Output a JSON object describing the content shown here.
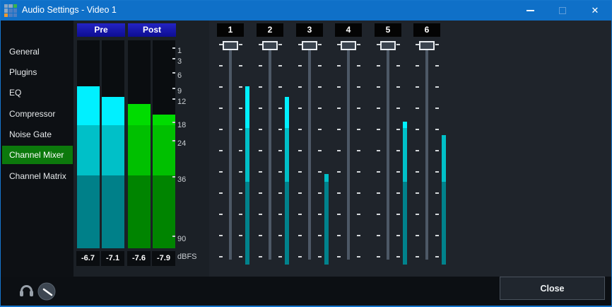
{
  "window": {
    "title": "Audio Settings - Video 1",
    "controls": {
      "minimize": "–",
      "close": "✕"
    }
  },
  "sidebar": {
    "items": [
      {
        "label": "General",
        "selected": false
      },
      {
        "label": "Plugins",
        "selected": false
      },
      {
        "label": "EQ",
        "selected": false
      },
      {
        "label": "Compressor",
        "selected": false
      },
      {
        "label": "Noise Gate",
        "selected": false
      },
      {
        "label": "Channel Mixer",
        "selected": true
      },
      {
        "label": "Channel Matrix",
        "selected": false
      }
    ]
  },
  "meters": {
    "pre_label": "Pre",
    "post_label": "Post",
    "scale_labels": [
      "1",
      "3",
      "6",
      "9",
      "12",
      "18",
      "24",
      "36",
      "90"
    ],
    "unit_label": "dBFS",
    "values": [
      "-6.7",
      "-7.1",
      "-7.6",
      "-7.9"
    ]
  },
  "channels": [
    {
      "label": "1"
    },
    {
      "label": "2"
    },
    {
      "label": "3"
    },
    {
      "label": "4"
    },
    {
      "label": "5"
    },
    {
      "label": "6"
    }
  ],
  "footer": {
    "close_label": "Close"
  },
  "colors": {
    "titlebar_blue": "#0f70c8",
    "selected_green": "#0c790c",
    "meter_cyan_bright": "#00f0ff",
    "meter_cyan_mid": "#00c0c8",
    "meter_cyan_dark": "#008089",
    "meter_green_bright": "#00dc00",
    "meter_green_mid": "#00c000",
    "meter_green_dark": "#008400",
    "logo_cells": [
      "#8ea7c2",
      "#8ea7c2",
      "#3bb54a",
      "#8ea7c2",
      "#4b7ec2",
      "#4b7ec2",
      "#f09a2f",
      "#4b7ec2",
      "#4b7ec2"
    ]
  }
}
